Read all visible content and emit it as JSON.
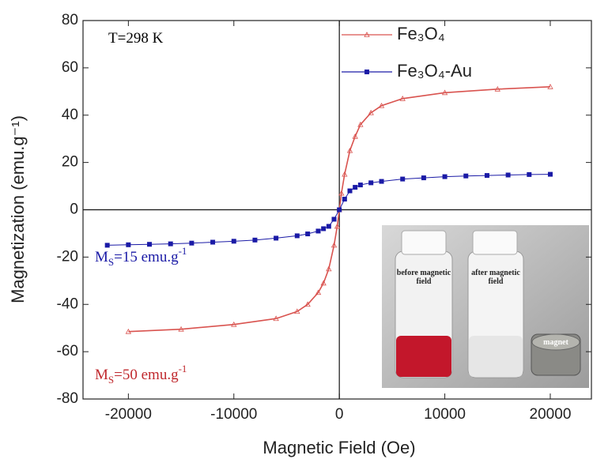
{
  "chart_data": {
    "type": "line",
    "x_label": "Magnetic Field (Oe)",
    "y_label": "Magnetization (emu.g⁻¹)",
    "xlim": [
      -24300,
      23900
    ],
    "ylim": [
      -80,
      80
    ],
    "xticks": [
      -20000,
      -10000,
      0,
      10000,
      20000
    ],
    "yticks": [
      -80,
      -60,
      -40,
      -20,
      0,
      20,
      40,
      60,
      80
    ],
    "legend": "top-center",
    "series": [
      {
        "name": "Fe₃O₄",
        "color": "#d9534f",
        "marker": "triangle",
        "x": [
          -20000,
          -15000,
          -10000,
          -6000,
          -4000,
          -3000,
          -2000,
          -1500,
          -1000,
          -500,
          -200,
          0,
          200,
          500,
          1000,
          1500,
          2000,
          3000,
          4000,
          6000,
          10000,
          15000,
          20000
        ],
        "values": [
          -51.5,
          -50.5,
          -48.5,
          -46,
          -43,
          -40,
          -35,
          -31,
          -25,
          -15,
          -7,
          0,
          7,
          15,
          25,
          31,
          36,
          41,
          44,
          47,
          49.5,
          51,
          52
        ]
      },
      {
        "name": "Fe₃O₄-Au",
        "color": "#1a1aa6",
        "marker": "square",
        "x": [
          -22000,
          -20000,
          -18000,
          -16000,
          -14000,
          -12000,
          -10000,
          -8000,
          -6000,
          -4000,
          -3000,
          -2000,
          -1500,
          -1000,
          -500,
          0,
          500,
          1000,
          1500,
          2000,
          3000,
          4000,
          6000,
          8000,
          10000,
          12000,
          14000,
          16000,
          18000,
          20000
        ],
        "values": [
          -15,
          -14.8,
          -14.6,
          -14.4,
          -14.1,
          -13.7,
          -13.3,
          -12.8,
          -12,
          -11,
          -10.2,
          -9,
          -8,
          -7,
          -4,
          0,
          4.5,
          8,
          9.5,
          10.5,
          11.4,
          12,
          13,
          13.5,
          14,
          14.3,
          14.5,
          14.7,
          14.9,
          15
        ]
      }
    ],
    "annotations": [
      {
        "parts": [
          "T=298 K"
        ],
        "color": "#000000"
      },
      {
        "parts": [
          "M",
          "S",
          "=15 emu.g",
          "-1"
        ],
        "color": "#1a1aa6"
      },
      {
        "parts": [
          "M",
          "S",
          "=50 emu.g",
          "-1"
        ],
        "color": "#c0282d"
      }
    ],
    "inset_labels": [
      "before magnetic field",
      "after magnetic field",
      "magnet"
    ]
  }
}
